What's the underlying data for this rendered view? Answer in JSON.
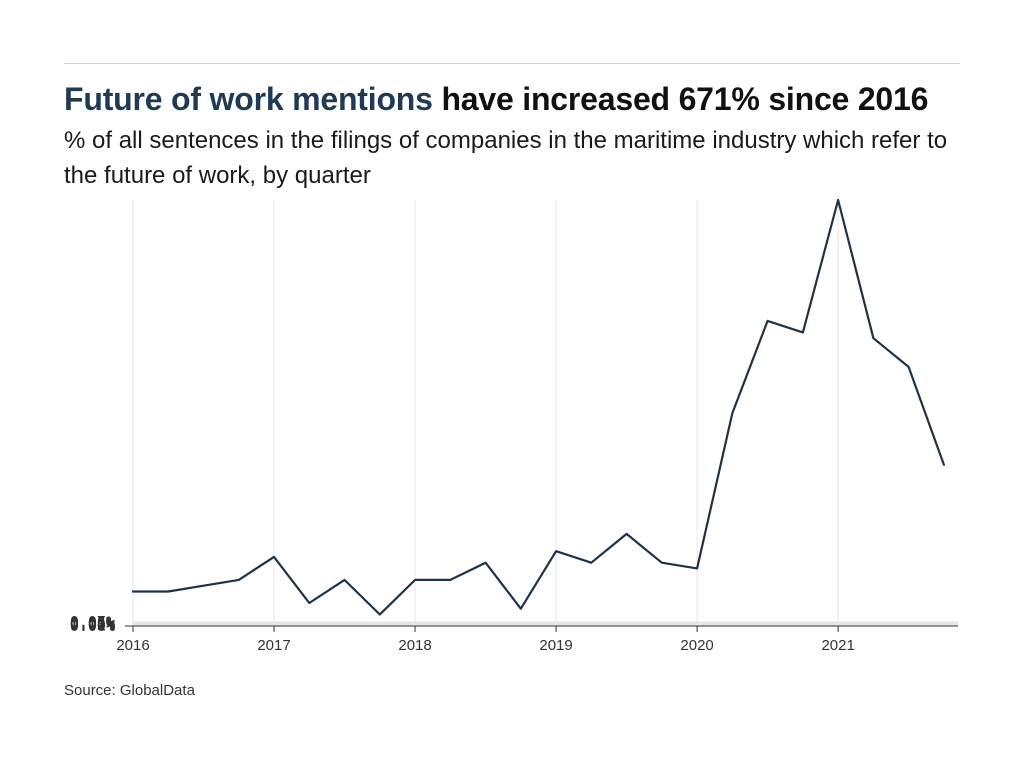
{
  "headline": {
    "accent": "Future of work mentions",
    "rest": " have increased 671% since 2016"
  },
  "subtitle": "% of all sentences in the filings of companies in the maritime industry which refer to the future of work, by quarter",
  "source": "Source: GlobalData",
  "colors": {
    "line": "#1f3347",
    "accent": "#1f3a55",
    "grid": "#e6e6e6",
    "axis": "#333333"
  },
  "chart_data": {
    "type": "line",
    "title": "Future of work mentions have increased 671% since 2016",
    "subtitle": "% of all sentences in the filings of companies in the maritime industry which refer to the future of work, by quarter",
    "xlabel": "",
    "ylabel": "",
    "x_ticks": [
      "2016",
      "2017",
      "2018",
      "2019",
      "2020",
      "2021"
    ],
    "y_ticks": [
      "0.00%",
      "0.01%",
      "0.02%",
      "0.03%",
      "0.04%",
      "0.05%",
      "0.06%",
      "0.07%"
    ],
    "xlim": [
      2016.0,
      2021.85
    ],
    "ylim": [
      0,
      0.074
    ],
    "grid": true,
    "series": [
      {
        "x": [
          "2016 Q1",
          "2016 Q2",
          "2016 Q3",
          "2016 Q4",
          "2017 Q1",
          "2017 Q2",
          "2017 Q3",
          "2017 Q4",
          "2018 Q1",
          "2018 Q2",
          "2018 Q3",
          "2018 Q4",
          "2019 Q1",
          "2019 Q2",
          "2019 Q3",
          "2019 Q4",
          "2020 Q1",
          "2020 Q2",
          "2020 Q3",
          "2020 Q4",
          "2021 Q1",
          "2021 Q2",
          "2021 Q3",
          "2021 Q4"
        ],
        "values": [
          0.006,
          0.006,
          0.007,
          0.008,
          0.012,
          0.004,
          0.008,
          0.002,
          0.008,
          0.008,
          0.011,
          0.003,
          0.013,
          0.011,
          0.016,
          0.011,
          0.01,
          0.037,
          0.053,
          0.051,
          0.074,
          0.05,
          0.045,
          0.028
        ]
      }
    ]
  }
}
